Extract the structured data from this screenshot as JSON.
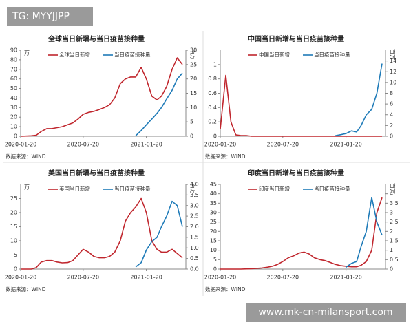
{
  "watermarks": {
    "top_left": "TG: MYYJJPP",
    "bottom_right": "www.mk-cn-milansport.com"
  },
  "chart_data": [
    {
      "type": "line",
      "title": "全球当日新增与当日疫苗接种量",
      "source": "数据来源：WIND",
      "left_unit": "万",
      "right_unit": "百万",
      "x": [
        "2020-01-20",
        "2020-02-05",
        "2020-02-20",
        "2020-03-05",
        "2020-03-20",
        "2020-04-05",
        "2020-04-20",
        "2020-05-05",
        "2020-05-20",
        "2020-06-05",
        "2020-06-20",
        "2020-07-05",
        "2020-07-20",
        "2020-08-05",
        "2020-08-20",
        "2020-09-05",
        "2020-09-20",
        "2020-10-05",
        "2020-10-20",
        "2020-11-05",
        "2020-11-20",
        "2020-12-05",
        "2020-12-20",
        "2021-01-05",
        "2021-01-20",
        "2021-02-05",
        "2021-02-20",
        "2021-03-05",
        "2021-03-20",
        "2021-04-05",
        "2021-04-20",
        "2021-05-05"
      ],
      "xlim": [
        "2020-01-20",
        "2021-05-15"
      ],
      "xticks": [
        "2020-01-20",
        "2020-07-20",
        "2021-01-20"
      ],
      "ylim": [
        0,
        90
      ],
      "yticks": [
        0,
        10,
        20,
        30,
        40,
        50,
        60,
        70,
        80,
        90
      ],
      "y2lim": [
        0,
        30
      ],
      "y2ticks": [
        0,
        5,
        10,
        15,
        20,
        25,
        30
      ],
      "series": [
        {
          "name": "全球当日新增",
          "color": "#c0262d",
          "values": [
            0,
            0.2,
            0.5,
            1,
            5,
            8,
            8,
            9,
            10,
            12,
            14,
            18,
            23,
            25,
            26,
            28,
            30,
            33,
            40,
            55,
            60,
            62,
            62,
            72,
            60,
            42,
            38,
            42,
            52,
            70,
            82,
            75
          ]
        },
        {
          "name": "当日疫苗接种量",
          "color": "#1f7bb8",
          "axis": "y2",
          "values": [
            null,
            null,
            null,
            null,
            null,
            null,
            null,
            null,
            null,
            null,
            null,
            null,
            null,
            null,
            null,
            null,
            null,
            null,
            null,
            null,
            null,
            null,
            0.2,
            2,
            4,
            6,
            8,
            10,
            13,
            16,
            20,
            22
          ]
        }
      ]
    },
    {
      "type": "line",
      "title": "中国当日新增与当日疫苗接种量",
      "source": "数据来源：WIND",
      "right_unit": "百万",
      "x": [
        "2020-01-20",
        "2020-02-05",
        "2020-02-20",
        "2020-03-05",
        "2020-03-20",
        "2020-04-05",
        "2020-04-20",
        "2020-05-05",
        "2020-05-20",
        "2020-06-05",
        "2020-06-20",
        "2020-07-05",
        "2020-07-20",
        "2020-08-05",
        "2020-08-20",
        "2020-09-05",
        "2020-09-20",
        "2020-10-05",
        "2020-10-20",
        "2020-11-05",
        "2020-11-20",
        "2020-12-05",
        "2020-12-20",
        "2021-01-05",
        "2021-01-20",
        "2021-02-05",
        "2021-02-20",
        "2021-03-05",
        "2021-03-20",
        "2021-04-05",
        "2021-04-20",
        "2021-05-05"
      ],
      "xlim": [
        "2020-01-20",
        "2021-05-15"
      ],
      "xticks": [
        "2020-01-20",
        "2020-07-20",
        "2021-01-20"
      ],
      "ylim": [
        0,
        1.2
      ],
      "yticks": [
        0,
        0.2,
        0.4,
        0.6,
        0.8,
        1
      ],
      "y2lim": [
        0,
        16
      ],
      "y2ticks": [
        0,
        2,
        4,
        6,
        8,
        10,
        12,
        14
      ],
      "series": [
        {
          "name": "中国当日新增",
          "color": "#c0262d",
          "values": [
            0.1,
            0.85,
            0.2,
            0.02,
            0.01,
            0.01,
            0,
            0,
            0,
            0,
            0,
            0,
            0,
            0,
            0,
            0,
            0,
            0,
            0,
            0,
            0,
            0,
            0,
            0,
            0,
            0,
            0,
            0,
            0,
            0,
            0,
            0
          ]
        },
        {
          "name": "当日疫苗接种量",
          "color": "#1f7bb8",
          "axis": "y2",
          "values": [
            null,
            null,
            null,
            null,
            null,
            null,
            null,
            null,
            null,
            null,
            null,
            null,
            null,
            null,
            null,
            null,
            null,
            null,
            null,
            null,
            null,
            null,
            0.1,
            0.3,
            0.5,
            1,
            0.8,
            2,
            4,
            5,
            8,
            13.5
          ]
        }
      ]
    },
    {
      "type": "line",
      "title": "美国当日新增与当日疫苗接种量",
      "source": "数据来源：WIND",
      "left_unit": "万",
      "right_unit": "百万",
      "x": [
        "2020-01-20",
        "2020-02-05",
        "2020-02-20",
        "2020-03-05",
        "2020-03-20",
        "2020-04-05",
        "2020-04-20",
        "2020-05-05",
        "2020-05-20",
        "2020-06-05",
        "2020-06-20",
        "2020-07-05",
        "2020-07-20",
        "2020-08-05",
        "2020-08-20",
        "2020-09-05",
        "2020-09-20",
        "2020-10-05",
        "2020-10-20",
        "2020-11-05",
        "2020-11-20",
        "2020-12-05",
        "2020-12-20",
        "2021-01-05",
        "2021-01-20",
        "2021-02-05",
        "2021-02-20",
        "2021-03-05",
        "2021-03-20",
        "2021-04-05",
        "2021-04-20",
        "2021-05-05"
      ],
      "xlim": [
        "2020-01-20",
        "2021-05-15"
      ],
      "xticks": [
        "2020-01-20",
        "2020-07-20",
        "2021-01-20"
      ],
      "ylim": [
        0,
        30
      ],
      "yticks": [
        0,
        5,
        10,
        15,
        20,
        25
      ],
      "y2lim": [
        0,
        4
      ],
      "y2ticks": [
        {
          "value": 0,
          "label": "0.0"
        },
        0.5,
        {
          "value": 1,
          "label": "1.0"
        },
        1.5,
        {
          "value": 2,
          "label": "2.0"
        },
        2.5,
        {
          "value": 3,
          "label": "3.0"
        },
        3.5,
        {
          "value": 4,
          "label": "4.0"
        }
      ],
      "series": [
        {
          "name": "美国当日新增",
          "color": "#c0262d",
          "values": [
            0,
            0,
            0,
            0.5,
            2.5,
            3,
            3,
            2.5,
            2.2,
            2.3,
            3,
            5,
            7,
            6,
            4.5,
            4,
            4,
            4.5,
            6,
            10,
            17,
            20,
            22,
            25,
            20,
            10,
            7,
            6,
            6,
            7,
            5.5,
            4
          ]
        },
        {
          "name": "当日疫苗接种量",
          "color": "#1f7bb8",
          "axis": "y2",
          "values": [
            null,
            null,
            null,
            null,
            null,
            null,
            null,
            null,
            null,
            null,
            null,
            null,
            null,
            null,
            null,
            null,
            null,
            null,
            null,
            null,
            null,
            null,
            0.1,
            0.3,
            0.9,
            1.3,
            1.5,
            2,
            2.5,
            3.2,
            3,
            2
          ]
        }
      ]
    },
    {
      "type": "line",
      "title": "印度当日新增与当日疫苗接种量",
      "source": "数据来源：WIND",
      "right_unit": "百万",
      "x": [
        "2020-01-20",
        "2020-02-05",
        "2020-02-20",
        "2020-03-05",
        "2020-03-20",
        "2020-04-05",
        "2020-04-20",
        "2020-05-05",
        "2020-05-20",
        "2020-06-05",
        "2020-06-20",
        "2020-07-05",
        "2020-07-20",
        "2020-08-05",
        "2020-08-20",
        "2020-09-05",
        "2020-09-20",
        "2020-10-05",
        "2020-10-20",
        "2020-11-05",
        "2020-11-20",
        "2020-12-05",
        "2020-12-20",
        "2021-01-05",
        "2021-01-20",
        "2021-02-05",
        "2021-02-20",
        "2021-03-05",
        "2021-03-20",
        "2021-04-05",
        "2021-04-20",
        "2021-05-05"
      ],
      "xlim": [
        "2020-01-20",
        "2021-05-15"
      ],
      "xticks": [
        "2020-01-20",
        "2020-07-20",
        "2021-01-20"
      ],
      "ylim": [
        0,
        45
      ],
      "yticks": [
        0,
        5,
        10,
        15,
        20,
        25,
        30,
        35,
        40,
        45
      ],
      "y2lim": [
        0,
        4.5
      ],
      "y2ticks": [
        0,
        0.5,
        1,
        1.5,
        2,
        2.5,
        3,
        3.5,
        4
      ],
      "series": [
        {
          "name": "印度当日新增",
          "color": "#c0262d",
          "values": [
            0,
            0,
            0,
            0,
            0,
            0.1,
            0.2,
            0.4,
            0.6,
            1,
            1.5,
            2.5,
            4,
            6,
            7,
            8.5,
            9,
            8,
            6,
            5,
            4.5,
            3.5,
            2.5,
            1.8,
            1.5,
            1.2,
            1.2,
            2,
            4,
            10,
            30,
            38
          ]
        },
        {
          "name": "当日疫苗接种量",
          "color": "#1f7bb8",
          "axis": "y2",
          "values": [
            null,
            null,
            null,
            null,
            null,
            null,
            null,
            null,
            null,
            null,
            null,
            null,
            null,
            null,
            null,
            null,
            null,
            null,
            null,
            null,
            null,
            null,
            null,
            null,
            0.1,
            0.3,
            0.4,
            1.2,
            2,
            3.8,
            2.5,
            1.8
          ]
        }
      ]
    }
  ]
}
